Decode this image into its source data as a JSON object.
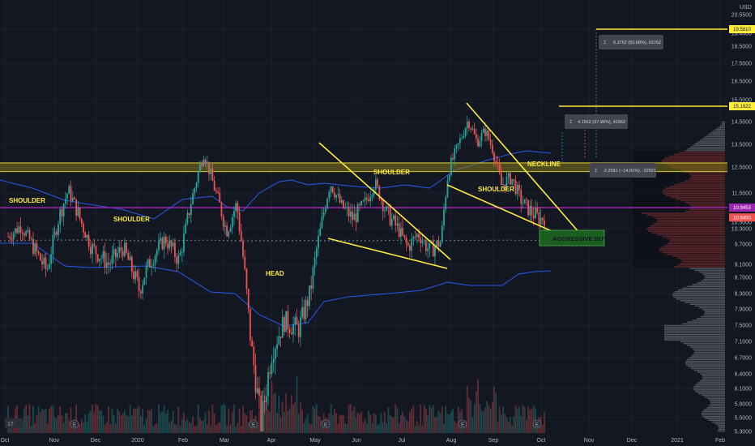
{
  "chart_data": {
    "type": "candlestick",
    "currency": "USD",
    "price_axis_ticks": [
      "20.5500",
      "19.5810",
      "19.4000",
      "18.5000",
      "17.5000",
      "16.5000",
      "15.5000",
      "15.1922",
      "14.5000",
      "13.5000",
      "12.5000",
      "11.5000",
      "10.9453",
      "10.5000",
      "10.3000",
      "9.7000",
      "9.1000",
      "8.7000",
      "8.3000",
      "7.9000",
      "7.5000",
      "7.1000",
      "6.7000",
      "6.4000",
      "6.1000",
      "5.8000",
      "5.5000",
      "5.3000"
    ],
    "price_tags": [
      {
        "label": "19.5810",
        "price": 19.581,
        "bg": "#ffeb3b",
        "fg": "#131722"
      },
      {
        "label": "15.1922",
        "price": 15.1922,
        "bg": "#ffeb3b",
        "fg": "#131722"
      },
      {
        "label": "10.9453",
        "price": 10.9453,
        "bg": "#9c27b0",
        "fg": "#ffffff"
      },
      {
        "label": "10.6450",
        "price": 10.645,
        "bg": "#ef5350",
        "fg": "#ffffff"
      }
    ],
    "time_axis_ticks": [
      "Oct",
      "Nov",
      "Dec",
      "2020",
      "Feb",
      "Mar",
      "Apr",
      "May",
      "Jun",
      "Jul",
      "Aug",
      "Sep",
      "Oct",
      "Nov",
      "Dec",
      "2021",
      "Feb"
    ],
    "annotations": [
      "SHOULDER",
      "SHOULDER",
      "HEAD",
      "SHOULDER",
      "SHOULDER",
      "NECKLINE",
      "AGGRESSIVE BUY"
    ],
    "measure_boxes": [
      "6.3762 (50.68%), 63762",
      "4.1562 (37.96%), 41562",
      "-2.2591 (−14.91%), -22591"
    ],
    "horizontal_levels": [
      {
        "price": 19.581,
        "color": "#ffeb3b"
      },
      {
        "price": 15.1922,
        "color": "#ffeb3b"
      },
      {
        "price": 12.5,
        "color": "#827717",
        "label": "neckline zone"
      },
      {
        "price": 10.9453,
        "color": "#9c27b0"
      }
    ],
    "close_path": [
      {
        "date": "2019-10-01",
        "price": 10.0
      },
      {
        "date": "2019-10-10",
        "price": 10.4
      },
      {
        "date": "2019-10-20",
        "price": 9.5
      },
      {
        "date": "2019-10-28",
        "price": 8.9
      },
      {
        "date": "2019-11-05",
        "price": 10.6
      },
      {
        "date": "2019-11-12",
        "price": 11.6
      },
      {
        "date": "2019-11-20",
        "price": 10.6
      },
      {
        "date": "2019-11-28",
        "price": 9.6
      },
      {
        "date": "2019-12-10",
        "price": 9.1
      },
      {
        "date": "2019-12-20",
        "price": 9.6
      },
      {
        "date": "2019-12-31",
        "price": 8.4
      },
      {
        "date": "2020-01-08",
        "price": 9.2
      },
      {
        "date": "2020-01-18",
        "price": 9.9
      },
      {
        "date": "2020-01-28",
        "price": 9.2
      },
      {
        "date": "2020-02-05",
        "price": 11.1
      },
      {
        "date": "2020-02-14",
        "price": 13.1
      },
      {
        "date": "2020-02-22",
        "price": 11.6
      },
      {
        "date": "2020-03-01",
        "price": 10.2
      },
      {
        "date": "2020-03-08",
        "price": 11.1
      },
      {
        "date": "2020-03-12",
        "price": 9.5
      },
      {
        "date": "2020-03-18",
        "price": 7.0
      },
      {
        "date": "2020-03-25",
        "price": 5.4
      },
      {
        "date": "2020-04-01",
        "price": 6.8
      },
      {
        "date": "2020-04-10",
        "price": 7.6
      },
      {
        "date": "2020-04-20",
        "price": 7.4
      },
      {
        "date": "2020-04-28",
        "price": 8.3
      },
      {
        "date": "2020-05-05",
        "price": 10.2
      },
      {
        "date": "2020-05-12",
        "price": 11.9
      },
      {
        "date": "2020-05-20",
        "price": 11.0
      },
      {
        "date": "2020-05-28",
        "price": 10.6
      },
      {
        "date": "2020-06-05",
        "price": 11.1
      },
      {
        "date": "2020-06-12",
        "price": 11.9
      },
      {
        "date": "2020-06-20",
        "price": 10.8
      },
      {
        "date": "2020-06-28",
        "price": 10.3
      },
      {
        "date": "2020-07-05",
        "price": 9.6
      },
      {
        "date": "2020-07-12",
        "price": 10.1
      },
      {
        "date": "2020-07-20",
        "price": 9.5
      },
      {
        "date": "2020-07-28",
        "price": 9.8
      },
      {
        "date": "2020-08-02",
        "price": 12.3
      },
      {
        "date": "2020-08-10",
        "price": 13.6
      },
      {
        "date": "2020-08-16",
        "price": 14.6
      },
      {
        "date": "2020-08-22",
        "price": 13.6
      },
      {
        "date": "2020-08-28",
        "price": 14.1
      },
      {
        "date": "2020-09-02",
        "price": 13.3
      },
      {
        "date": "2020-09-08",
        "price": 11.8
      },
      {
        "date": "2020-09-15",
        "price": 12.1
      },
      {
        "date": "2020-09-22",
        "price": 11.2
      },
      {
        "date": "2020-09-29",
        "price": 10.8
      },
      {
        "date": "2020-10-05",
        "price": 10.6
      },
      {
        "date": "2020-10-08",
        "price": 10.65
      }
    ],
    "grid": true
  },
  "watermark_mark": "logo-TV"
}
